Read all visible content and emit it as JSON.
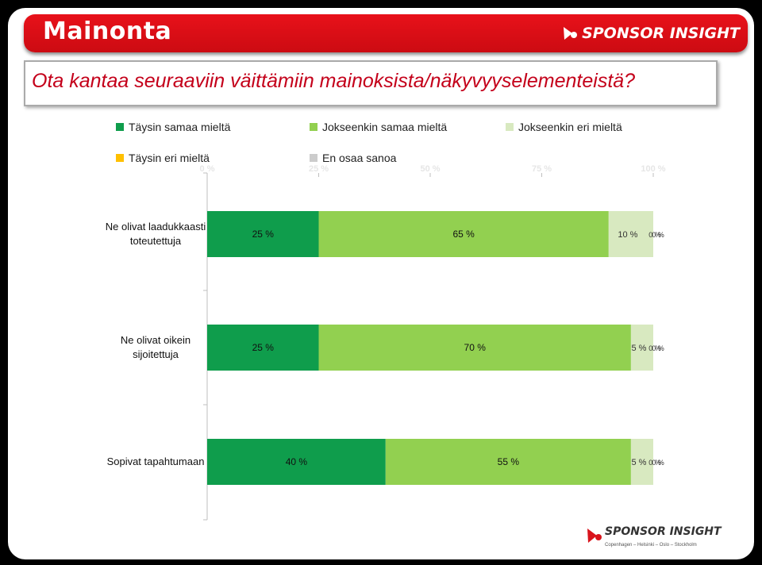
{
  "header": {
    "title": "Mainonta",
    "brand": "SPONSOR INSIGHT"
  },
  "question": "Ota kantaa seuraaviin väittämiin mainoksista/näkyvyyselementeistä?",
  "footer": {
    "brand": "SPONSOR INSIGHT",
    "cities": "Copenhagen – Helsinki – Oslo – Stockholm"
  },
  "chart_data": {
    "type": "bar",
    "orientation": "horizontal",
    "stacked": true,
    "percent": true,
    "categories": [
      "Ne olivat laadukkaasti toteutettuja",
      "Ne olivat oikein sijoitettuja",
      "Sopivat tapahtumaan"
    ],
    "category_lines": [
      [
        "Ne olivat laadukkaasti",
        "toteutettuja"
      ],
      [
        "Ne olivat oikein",
        "sijoitettuja"
      ],
      [
        "Sopivat tapahtumaan"
      ]
    ],
    "series": [
      {
        "name": "Täysin samaa mieltä",
        "color": "#0f9d4c",
        "values": [
          25,
          25,
          40
        ],
        "labels": [
          "25 %",
          "25 %",
          "40 %"
        ]
      },
      {
        "name": "Jokseenkin samaa mieltä",
        "color": "#92d050",
        "values": [
          65,
          70,
          55
        ],
        "labels": [
          "65 %",
          "70 %",
          "55 %"
        ]
      },
      {
        "name": "Jokseenkin eri mieltä",
        "color": "#d8e9c0",
        "values": [
          10,
          5,
          5
        ],
        "labels": [
          "10 %",
          "5 %",
          "5 %"
        ]
      },
      {
        "name": "Täysin eri mieltä",
        "color": "#ffc000",
        "values": [
          0,
          0,
          0
        ],
        "labels": [
          "0 %",
          "0 %",
          "0 %"
        ]
      },
      {
        "name": "En osaa sanoa",
        "color": "#cccccc",
        "values": [
          0,
          0,
          0
        ],
        "labels": [
          "0 %",
          "0 %",
          "0 %"
        ]
      }
    ],
    "xlim": [
      0,
      100
    ],
    "xticks": [
      0,
      25,
      50,
      75,
      100
    ],
    "xtick_labels": [
      "0 %",
      "25 %",
      "50 %",
      "75 %",
      "100 %"
    ],
    "grid": false,
    "legend_position": "top"
  }
}
